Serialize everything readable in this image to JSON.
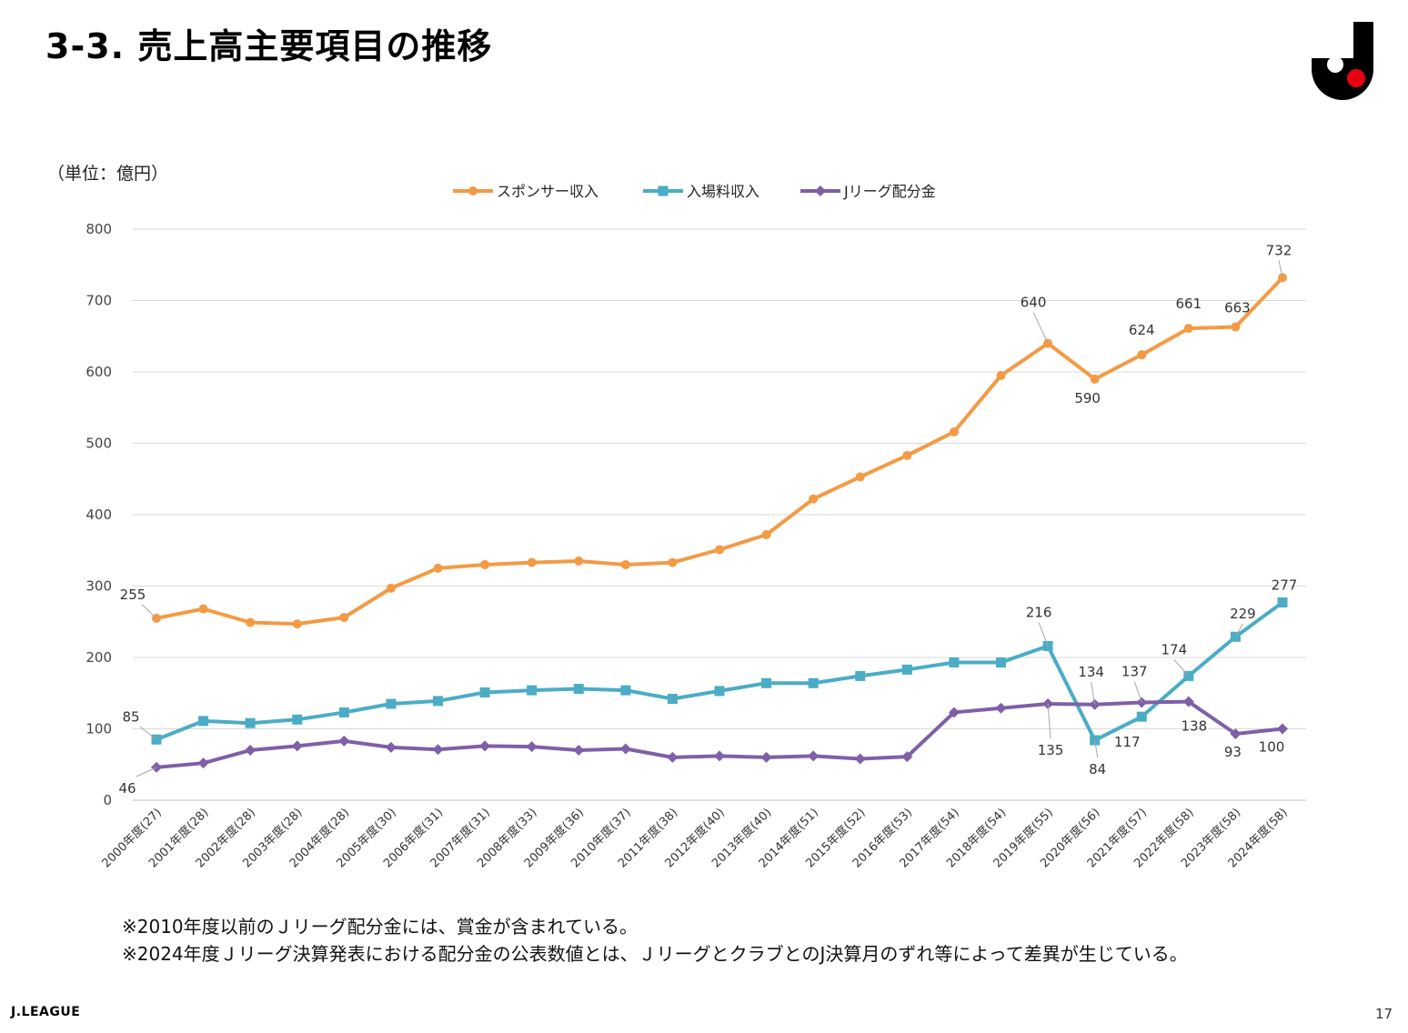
{
  "page": {
    "title": "3-3. 売上高主要項目の推移",
    "unit": "（単位：億円）",
    "notes": [
      "※2010年度以前のＪリーグ配分金には、賞金が含まれている。",
      "※2024年度Ｊリーグ決算発表における配分金の公表数値とは、ＪリーグとクラブとのJ決算月のずれ等によって差異が生じている。"
    ],
    "footer_brand": "J.LEAGUE",
    "page_number": "17"
  },
  "chart_data": {
    "type": "line",
    "title": "",
    "xlabel": "",
    "ylabel": "",
    "ylim": [
      0,
      800
    ],
    "yticks": [
      0,
      100,
      200,
      300,
      400,
      500,
      600,
      700,
      800
    ],
    "grid": true,
    "legend_position": "top",
    "categories": [
      "2000年度(27)",
      "2001年度(28)",
      "2002年度(28)",
      "2003年度(28)",
      "2004年度(28)",
      "2005年度(30)",
      "2006年度(31)",
      "2007年度(31)",
      "2008年度(33)",
      "2009年度(36)",
      "2010年度(37)",
      "2011年度(38)",
      "2012年度(40)",
      "2013年度(40)",
      "2014年度(51)",
      "2015年度(52)",
      "2016年度(53)",
      "2017年度(54)",
      "2018年度(54)",
      "2019年度(55)",
      "2020年度(56)",
      "2021年度(57)",
      "2022年度(58)",
      "2023年度(58)",
      "2024年度(58)"
    ],
    "series": [
      {
        "name": "スポンサー収入",
        "color": "#f39a45",
        "marker": "circle",
        "values": [
          255,
          268,
          249,
          247,
          256,
          297,
          325,
          330,
          333,
          335,
          330,
          333,
          351,
          372,
          422,
          453,
          483,
          516,
          595,
          640,
          590,
          624,
          661,
          663,
          732
        ],
        "labeled": {
          "0": "255",
          "19": "640",
          "20": "590",
          "21": "624",
          "22": "661",
          "23": "663",
          "24": "732"
        }
      },
      {
        "name": "入場料収入",
        "color": "#4bacc6",
        "marker": "square",
        "values": [
          85,
          111,
          108,
          113,
          123,
          135,
          139,
          151,
          154,
          156,
          154,
          142,
          153,
          164,
          164,
          174,
          183,
          193,
          193,
          216,
          84,
          117,
          174,
          229,
          277
        ],
        "labeled": {
          "0": "85",
          "19": "216",
          "20": "84",
          "21": "117",
          "22": "174",
          "23": "229",
          "24": "277"
        }
      },
      {
        "name": "Jリーグ配分金",
        "color": "#7f5fa8",
        "marker": "diamond",
        "values": [
          46,
          52,
          70,
          76,
          83,
          74,
          71,
          76,
          75,
          70,
          72,
          60,
          62,
          60,
          62,
          58,
          61,
          123,
          129,
          135,
          134,
          137,
          138,
          93,
          100
        ],
        "labeled": {
          "0": "46",
          "19": "135",
          "20": "134",
          "21": "137",
          "22": "138",
          "23": "93",
          "24": "100"
        }
      }
    ]
  }
}
